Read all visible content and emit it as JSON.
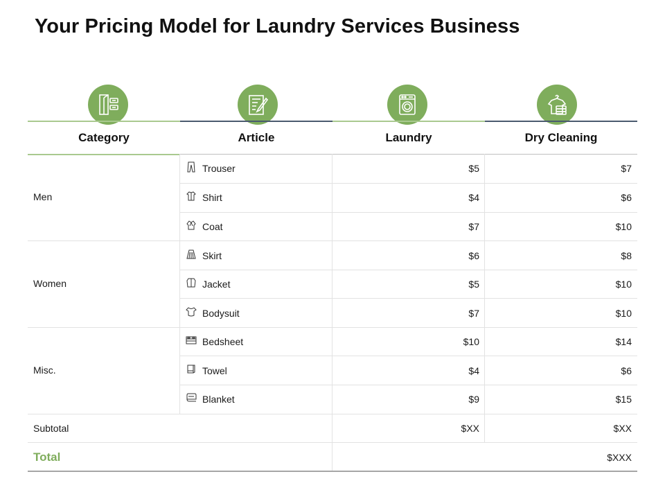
{
  "title": "Your Pricing Model for Laundry Services Business",
  "colors": {
    "accent": "#7fad5c",
    "header_bar_green": "#a9c98f",
    "header_bar_blue": "#4a5a6e"
  },
  "headers": [
    "Category",
    "Article",
    "Laundry",
    "Dry Cleaning"
  ],
  "header_icons": [
    "wardrobe-icon",
    "checklist-icon",
    "washing-machine-icon",
    "shirt-folded-clothes-icon"
  ],
  "groups": [
    {
      "category": "Men",
      "items": [
        {
          "article": "Trouser",
          "icon": "trouser-icon",
          "laundry": "$5",
          "dry": "$7"
        },
        {
          "article": "Shirt",
          "icon": "shirt-icon",
          "laundry": "$4",
          "dry": "$6"
        },
        {
          "article": "Coat",
          "icon": "coat-icon",
          "laundry": "$7",
          "dry": "$10"
        }
      ]
    },
    {
      "category": "Women",
      "items": [
        {
          "article": "Skirt",
          "icon": "skirt-icon",
          "laundry": "$6",
          "dry": "$8"
        },
        {
          "article": "Jacket",
          "icon": "jacket-icon",
          "laundry": "$5",
          "dry": "$10"
        },
        {
          "article": "Bodysuit",
          "icon": "bodysuit-icon",
          "laundry": "$7",
          "dry": "$10"
        }
      ]
    },
    {
      "category": "Misc.",
      "items": [
        {
          "article": "Bedsheet",
          "icon": "bedsheet-icon",
          "laundry": "$10",
          "dry": "$14"
        },
        {
          "article": "Towel",
          "icon": "towel-icon",
          "laundry": "$4",
          "dry": "$6"
        },
        {
          "article": "Blanket",
          "icon": "blanket-icon",
          "laundry": "$9",
          "dry": "$15"
        }
      ]
    }
  ],
  "subtotal": {
    "label": "Subtotal",
    "laundry": "$XX",
    "dry": "$XX"
  },
  "total": {
    "label": "Total",
    "value": "$XXX"
  }
}
